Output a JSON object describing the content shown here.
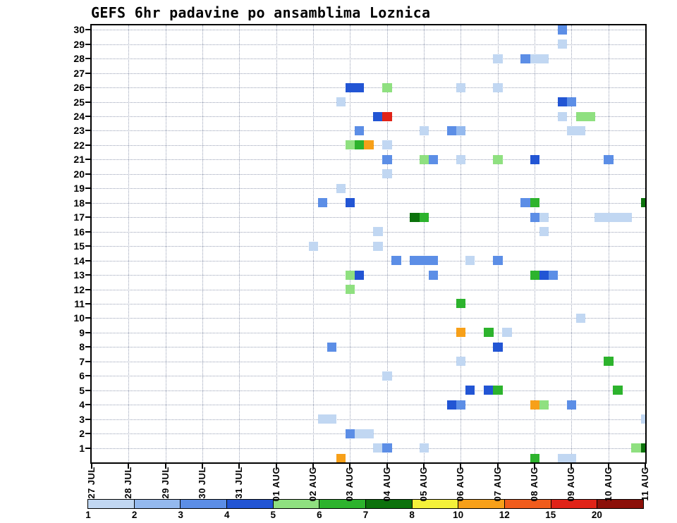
{
  "chart_data": {
    "type": "heatmap",
    "title": "GEFS 6hr padavine po ansamblima Loznica",
    "x_tick_labels": [
      "27 JUL",
      "28 JUL",
      "29 JUL",
      "30 JUL",
      "31 JUL",
      "01 AUG",
      "02 AUG",
      "03 AUG",
      "04 AUG",
      "05 AUG",
      "06 AUG",
      "07 AUG",
      "08 AUG",
      "09 AUG",
      "10 AUG",
      "11 AUG"
    ],
    "x_slot_hours": 6,
    "x_slots": 60,
    "y_tick_labels": [
      "30",
      "29",
      "28",
      "27",
      "26",
      "25",
      "24",
      "23",
      "22",
      "21",
      "20",
      "19",
      "18",
      "17",
      "16",
      "15",
      "14",
      "13",
      "12",
      "11",
      "10",
      "9",
      "8",
      "7",
      "6",
      "5",
      "4",
      "3",
      "2",
      "1"
    ],
    "ylim": [
      0,
      30
    ],
    "grid": "dotted",
    "legend_position": "bottom",
    "levels": [
      {
        "label": "1",
        "color": "#c1d7f2"
      },
      {
        "label": "2",
        "color": "#94b9ee"
      },
      {
        "label": "3",
        "color": "#5c8ee6"
      },
      {
        "label": "4",
        "color": "#2255d4"
      },
      {
        "label": "5",
        "color": "#8fe080"
      },
      {
        "label": "6",
        "color": "#2db32d"
      },
      {
        "label": "7",
        "color": "#0c720c"
      },
      {
        "label": "8",
        "color": "#f4f13a"
      },
      {
        "label": "10",
        "color": "#f7a019"
      },
      {
        "label": "12",
        "color": "#f05c1c"
      },
      {
        "label": "15",
        "color": "#e02318"
      },
      {
        "label": "20",
        "color": "#8c1009"
      }
    ],
    "cells": [
      [
        30,
        50,
        "3"
      ],
      [
        29,
        50,
        "1"
      ],
      [
        28,
        43,
        "1"
      ],
      [
        28,
        46,
        "3"
      ],
      [
        28,
        47,
        "1"
      ],
      [
        28,
        48,
        "1"
      ],
      [
        26,
        27,
        "4"
      ],
      [
        26,
        28,
        "4"
      ],
      [
        26,
        31,
        "5"
      ],
      [
        26,
        39,
        "1"
      ],
      [
        26,
        43,
        "1"
      ],
      [
        25,
        26,
        "1"
      ],
      [
        25,
        50,
        "4"
      ],
      [
        25,
        51,
        "3"
      ],
      [
        24,
        30,
        "4"
      ],
      [
        24,
        31,
        "15"
      ],
      [
        24,
        50,
        "1"
      ],
      [
        24,
        52,
        "5"
      ],
      [
        24,
        53,
        "5"
      ],
      [
        23,
        28,
        "3"
      ],
      [
        23,
        35,
        "1"
      ],
      [
        23,
        38,
        "3"
      ],
      [
        23,
        39,
        "2"
      ],
      [
        23,
        51,
        "1"
      ],
      [
        23,
        52,
        "1"
      ],
      [
        22,
        27,
        "5"
      ],
      [
        22,
        28,
        "6"
      ],
      [
        22,
        29,
        "10"
      ],
      [
        22,
        31,
        "1"
      ],
      [
        21,
        31,
        "3"
      ],
      [
        21,
        35,
        "5"
      ],
      [
        21,
        36,
        "3"
      ],
      [
        21,
        39,
        "1"
      ],
      [
        21,
        43,
        "5"
      ],
      [
        21,
        47,
        "4"
      ],
      [
        21,
        55,
        "3"
      ],
      [
        20,
        31,
        "1"
      ],
      [
        19,
        26,
        "1"
      ],
      [
        18,
        24,
        "3"
      ],
      [
        18,
        27,
        "4"
      ],
      [
        18,
        46,
        "3"
      ],
      [
        18,
        47,
        "6"
      ],
      [
        18,
        59,
        "7"
      ],
      [
        17,
        34,
        "7"
      ],
      [
        17,
        35,
        "6"
      ],
      [
        17,
        47,
        "3"
      ],
      [
        17,
        48,
        "1"
      ],
      [
        17,
        54,
        "1"
      ],
      [
        17,
        55,
        "1"
      ],
      [
        17,
        56,
        "1"
      ],
      [
        17,
        57,
        "1"
      ],
      [
        16,
        30,
        "1"
      ],
      [
        16,
        48,
        "1"
      ],
      [
        15,
        23,
        "1"
      ],
      [
        15,
        30,
        "1"
      ],
      [
        14,
        32,
        "3"
      ],
      [
        14,
        34,
        "3"
      ],
      [
        14,
        35,
        "3"
      ],
      [
        14,
        36,
        "3"
      ],
      [
        14,
        40,
        "1"
      ],
      [
        14,
        43,
        "3"
      ],
      [
        13,
        27,
        "5"
      ],
      [
        13,
        28,
        "4"
      ],
      [
        13,
        36,
        "3"
      ],
      [
        13,
        47,
        "6"
      ],
      [
        13,
        48,
        "4"
      ],
      [
        13,
        49,
        "3"
      ],
      [
        12,
        27,
        "5"
      ],
      [
        11,
        39,
        "6"
      ],
      [
        10,
        52,
        "1"
      ],
      [
        9,
        39,
        "10"
      ],
      [
        9,
        42,
        "6"
      ],
      [
        9,
        44,
        "1"
      ],
      [
        8,
        25,
        "3"
      ],
      [
        8,
        43,
        "4"
      ],
      [
        7,
        39,
        "1"
      ],
      [
        7,
        55,
        "6"
      ],
      [
        6,
        31,
        "1"
      ],
      [
        5,
        40,
        "4"
      ],
      [
        5,
        42,
        "4"
      ],
      [
        5,
        43,
        "6"
      ],
      [
        5,
        56,
        "6"
      ],
      [
        4,
        38,
        "4"
      ],
      [
        4,
        39,
        "3"
      ],
      [
        4,
        47,
        "10"
      ],
      [
        4,
        48,
        "5"
      ],
      [
        4,
        51,
        "3"
      ],
      [
        3,
        24,
        "1"
      ],
      [
        3,
        25,
        "1"
      ],
      [
        3,
        59,
        "1"
      ],
      [
        2,
        27,
        "3"
      ],
      [
        2,
        28,
        "1"
      ],
      [
        2,
        29,
        "1"
      ],
      [
        1,
        30,
        "1"
      ],
      [
        1,
        31,
        "3"
      ],
      [
        1,
        35,
        "1"
      ],
      [
        1,
        58,
        "5"
      ],
      [
        1,
        59,
        "7"
      ],
      [
        0,
        26,
        "10"
      ],
      [
        0,
        47,
        "6"
      ],
      [
        0,
        50,
        "1"
      ],
      [
        0,
        51,
        "1"
      ]
    ]
  }
}
